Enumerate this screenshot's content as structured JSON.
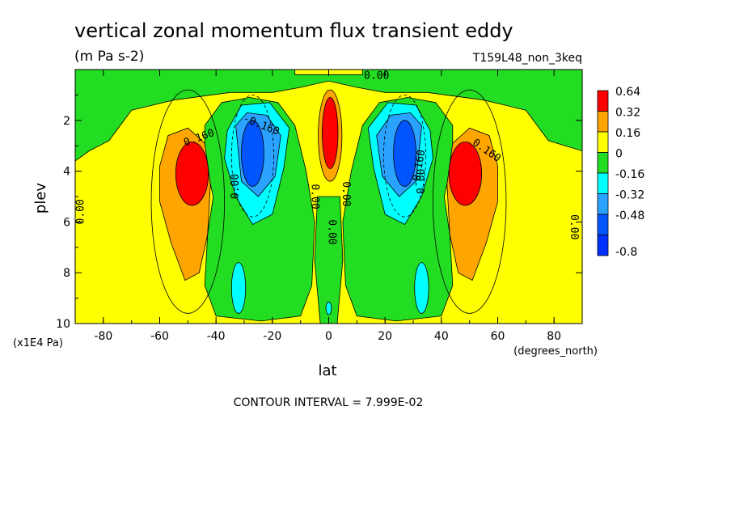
{
  "header": {
    "title": "vertical zonal momentum flux transient eddy",
    "units": "(m Pa s-2)",
    "run_id": "T159L48_non_3keq"
  },
  "footer": {
    "contour_interval": "CONTOUR INTERVAL = 7.999E-02"
  },
  "colors": {
    "red": "#ff0000",
    "orange": "#ffa500",
    "yellow": "#ffff00",
    "green": "#22dd22",
    "cyan": "#00ffff",
    "skyblue": "#29a3ff",
    "blue": "#0055ff",
    "deepblue": "#0030ff"
  },
  "chart_data": {
    "type": "heatmap",
    "xlabel": "lat",
    "xunits": "(degrees_north)",
    "ylabel": "plev",
    "yunits": "(x1E4 Pa)",
    "xlim": [
      -90,
      90
    ],
    "ylim": [
      10,
      0
    ],
    "xticks": [
      -80,
      -60,
      -40,
      -20,
      0,
      20,
      40,
      60,
      80
    ],
    "xtick_labels": [
      "-80",
      "-60",
      "-40",
      "-20",
      "0",
      "20",
      "40",
      "60",
      "80"
    ],
    "yticks": [
      2,
      4,
      6,
      8,
      10
    ],
    "ytick_labels": [
      "2",
      "4",
      "6",
      "8",
      "10"
    ],
    "colorbar": {
      "labels": [
        "0.64",
        "0.32",
        "0.16",
        "0",
        "-0.16",
        "-0.32",
        "-0.48",
        "-0.8"
      ],
      "colors": [
        "#ff0000",
        "#ffa500",
        "#ffff00",
        "#22dd22",
        "#00ffff",
        "#29a3ff",
        "#0055ff",
        "#0030ff"
      ]
    },
    "contour_labels": [
      {
        "text": "0.00",
        "lat": 17,
        "plev": 0.25,
        "rot": 0
      },
      {
        "text": "0.160",
        "lat": -46,
        "plev": 2.7,
        "rot": -20
      },
      {
        "text": "-0.160",
        "lat": -24,
        "plev": 2.2,
        "rot": 22
      },
      {
        "text": "0.00",
        "lat": -33,
        "plev": 4.6,
        "rot": -90
      },
      {
        "text": "0.00",
        "lat": -5,
        "plev": 5.0,
        "rot": 90
      },
      {
        "text": "0.00",
        "lat": 6,
        "plev": 4.9,
        "rot": 90
      },
      {
        "text": "0.00",
        "lat": 1,
        "plev": 6.4,
        "rot": 90
      },
      {
        "text": "-0.160",
        "lat": 32,
        "plev": 3.9,
        "rot": -80
      },
      {
        "text": "0.00",
        "lat": 33,
        "plev": 4.4,
        "rot": -90
      },
      {
        "text": "0.160",
        "lat": 56,
        "plev": 3.2,
        "rot": 35
      },
      {
        "text": "0.00",
        "lat": -88,
        "plev": 5.6,
        "rot": -90
      },
      {
        "text": "0.00",
        "lat": 87,
        "plev": 6.2,
        "rot": 90
      }
    ]
  }
}
